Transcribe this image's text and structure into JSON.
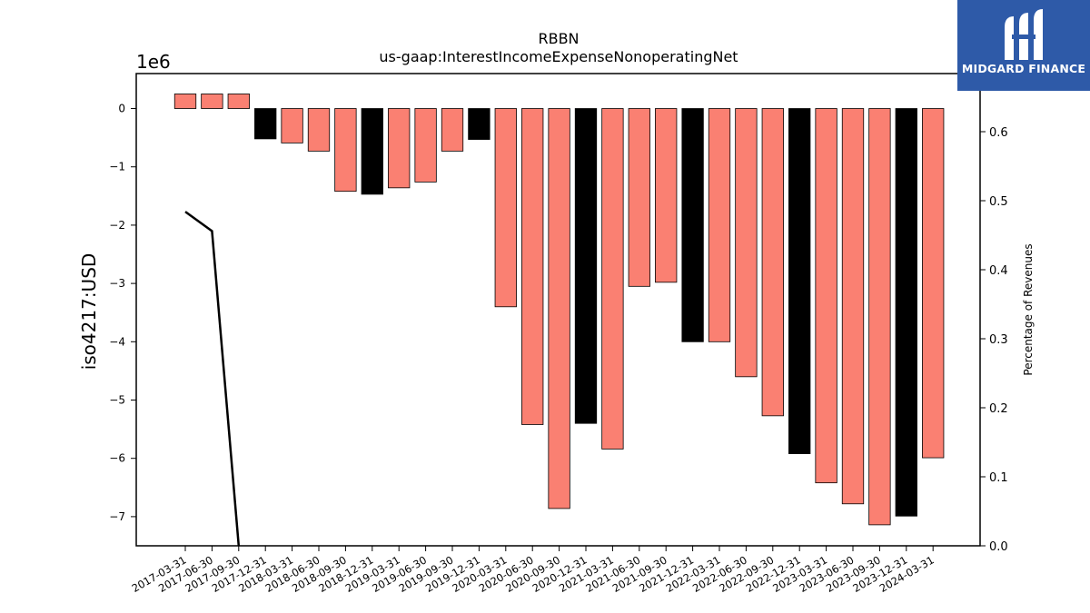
{
  "chart_data": {
    "type": "bar",
    "title": "RBBN",
    "subtitle": "us-gaap:InterestIncomeExpenseNonoperatingNet",
    "ylabel": "iso4217:USD",
    "y_offset_label": "1e6",
    "y2label": "Percentage of Revenues",
    "categories": [
      "2017-03-31",
      "2017-06-30",
      "2017-09-30",
      "2017-12-31",
      "2018-03-31",
      "2018-06-30",
      "2018-09-30",
      "2018-12-31",
      "2019-03-31",
      "2019-06-30",
      "2019-09-30",
      "2019-12-31",
      "2020-03-31",
      "2020-06-30",
      "2020-09-30",
      "2020-12-31",
      "2021-03-31",
      "2021-06-30",
      "2021-09-30",
      "2021-12-31",
      "2022-03-31",
      "2022-06-30",
      "2022-09-30",
      "2022-12-31",
      "2023-03-31",
      "2023-06-30",
      "2023-09-30",
      "2023-12-31",
      "2024-03-31"
    ],
    "series": [
      {
        "values": [
          250000,
          250000,
          250000,
          -520000,
          -590000,
          -730000,
          -1420000,
          -1470000,
          -1360000,
          -1260000,
          -730000,
          -530000,
          -3400000,
          -5420000,
          -6860000,
          -5400000,
          -5840000,
          -3050000,
          -2980000,
          -4000000,
          -4000000,
          -4600000,
          -5270000,
          -5920000,
          -6420000,
          -6780000,
          -7140000,
          -6990000,
          -5990000
        ],
        "highlight": [
          false,
          false,
          false,
          true,
          false,
          false,
          false,
          true,
          false,
          false,
          false,
          true,
          false,
          false,
          false,
          true,
          false,
          false,
          false,
          true,
          false,
          false,
          false,
          true,
          false,
          false,
          false,
          true,
          false
        ]
      },
      {
        "axis": "right",
        "type": "line",
        "x": [
          "2017-03-31",
          "2017-06-30",
          "2017-09-30"
        ],
        "values": [
          0.484,
          0.456,
          0.0
        ]
      }
    ],
    "ylim": [
      -7500000,
      600000
    ],
    "yticks": [
      0,
      -1,
      -2,
      -3,
      -4,
      -5,
      -6,
      -7
    ],
    "y2lim": [
      0.0,
      0.6842
    ],
    "y2ticks": [
      "0.0",
      "0.1",
      "0.2",
      "0.3",
      "0.4",
      "0.5",
      "0.6"
    ],
    "colors": {
      "regular": "#fa8072",
      "highlight": "#000000",
      "line": "#000000"
    },
    "grid": false
  },
  "logo": {
    "text": "MIDGARD FINANCE",
    "color": "#2e5aa8"
  }
}
